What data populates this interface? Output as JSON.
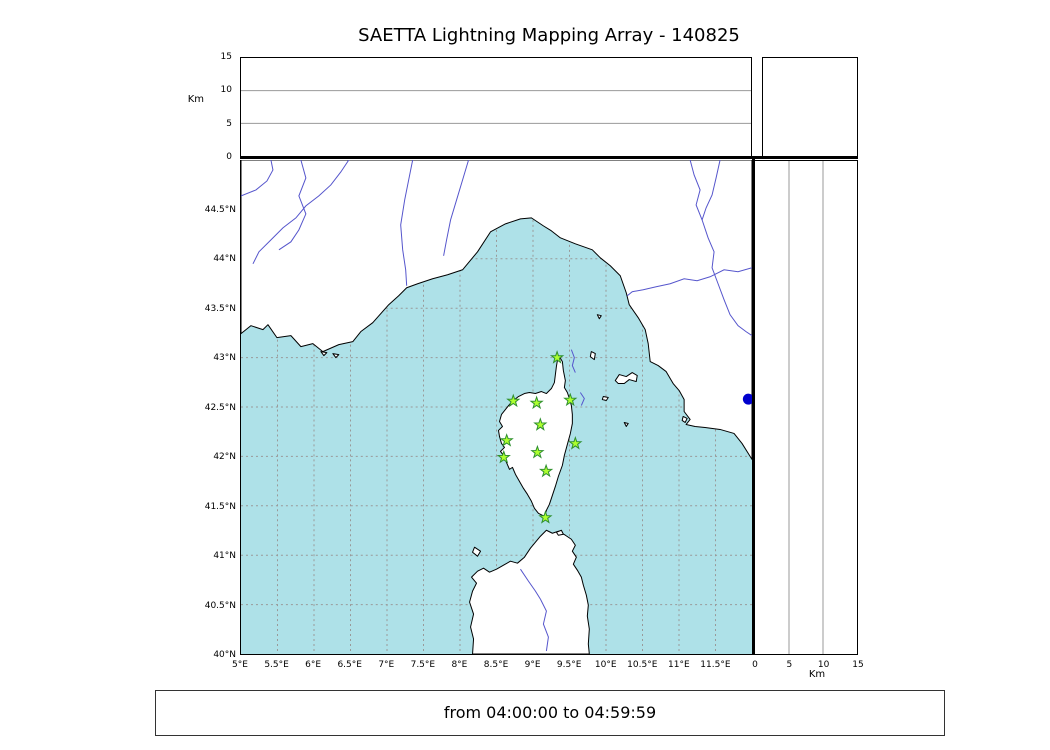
{
  "title": "SAETTA Lightning Mapping Array - 140825",
  "footer": {
    "time_range": "from 04:00:00 to 04:59:59"
  },
  "axes": {
    "km_label": "Km",
    "alt_range": [
      0,
      15
    ],
    "alt_ticks": [
      {
        "v": 0,
        "label": "0"
      },
      {
        "v": 5,
        "label": "5"
      },
      {
        "v": 10,
        "label": "10"
      },
      {
        "v": 15,
        "label": "15"
      }
    ],
    "lat_range": [
      40,
      45
    ],
    "lat_ticks": [
      {
        "v": 44.5,
        "label": "44.5°N"
      },
      {
        "v": 44,
        "label": "44°N"
      },
      {
        "v": 43.5,
        "label": "43.5°N"
      },
      {
        "v": 43,
        "label": "43°N"
      },
      {
        "v": 42.5,
        "label": "42.5°N"
      },
      {
        "v": 42,
        "label": "42°N"
      },
      {
        "v": 41.5,
        "label": "41.5°N"
      },
      {
        "v": 41,
        "label": "41°N"
      },
      {
        "v": 40.5,
        "label": "40.5°N"
      },
      {
        "v": 40,
        "label": "40°N"
      }
    ],
    "lon_range": [
      5,
      12
    ],
    "lon_ticks": [
      {
        "v": 5,
        "label": "5°E"
      },
      {
        "v": 5.5,
        "label": "5.5°E"
      },
      {
        "v": 6,
        "label": "6°E"
      },
      {
        "v": 6.5,
        "label": "6.5°E"
      },
      {
        "v": 7,
        "label": "7°E"
      },
      {
        "v": 7.5,
        "label": "7.5°E"
      },
      {
        "v": 8,
        "label": "8°E"
      },
      {
        "v": 8.5,
        "label": "8.5°E"
      },
      {
        "v": 9,
        "label": "9°E"
      },
      {
        "v": 9.5,
        "label": "9.5°E"
      },
      {
        "v": 10,
        "label": "10°E"
      },
      {
        "v": 10.5,
        "label": "10.5°E"
      },
      {
        "v": 11,
        "label": "11°E"
      },
      {
        "v": 11.5,
        "label": "11.5°E"
      }
    ]
  },
  "colors": {
    "sea": "#aee1e8",
    "land": "#ffffff",
    "coast": "#000000",
    "river": "#5555cc",
    "grid": "#999999",
    "station_fill": "#adff2f",
    "station_stroke": "#2f8f2f",
    "point": "#0000cd"
  },
  "chart_data": {
    "type": "scatter",
    "title": "SAETTA Lightning Mapping Array - 140825",
    "time_window": "from 04:00:00 to 04:59:59",
    "map_panel": {
      "lon_range_deg_e": [
        5,
        12
      ],
      "lat_range_deg_n": [
        40,
        45
      ],
      "grid_step_deg": 0.5
    },
    "altitude_panels": {
      "range_km": [
        0,
        15
      ],
      "ticks_km": [
        0,
        5,
        10,
        15
      ]
    },
    "stations": [
      {
        "lon": 9.33,
        "lat": 43.0
      },
      {
        "lon": 8.73,
        "lat": 42.56
      },
      {
        "lon": 9.05,
        "lat": 42.54
      },
      {
        "lon": 9.51,
        "lat": 42.57
      },
      {
        "lon": 9.1,
        "lat": 42.32
      },
      {
        "lon": 8.64,
        "lat": 42.16
      },
      {
        "lon": 9.58,
        "lat": 42.13
      },
      {
        "lon": 8.6,
        "lat": 41.99
      },
      {
        "lon": 9.06,
        "lat": 42.04
      },
      {
        "lon": 9.18,
        "lat": 41.85
      },
      {
        "lon": 9.17,
        "lat": 41.38
      }
    ],
    "lightning_points": [
      {
        "lon": 11.95,
        "lat": 42.58,
        "alt_km": 0
      }
    ]
  }
}
